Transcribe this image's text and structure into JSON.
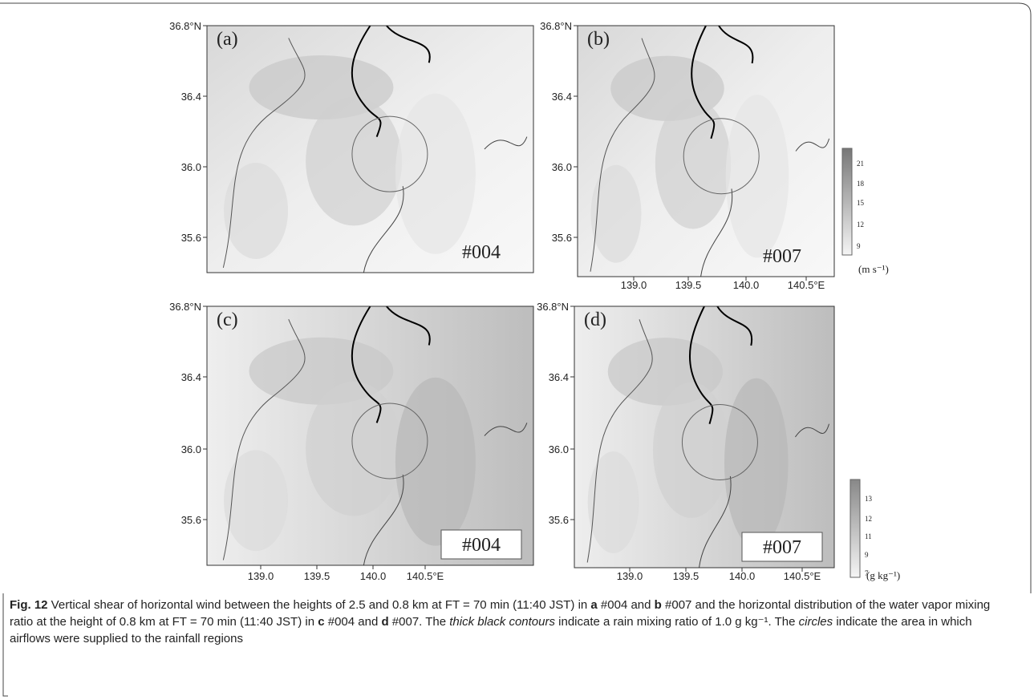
{
  "panels": [
    {
      "label": "(a)",
      "run": "#004",
      "lat_ticks": [
        "36.8°N",
        "36.4",
        "36.0",
        "35.6"
      ]
    },
    {
      "label": "(b)",
      "run": "#007",
      "lat_ticks": [
        "36.8°N",
        "36.4",
        "36.0",
        "35.6"
      ],
      "lon_ticks": [
        "139.0",
        "139.5",
        "140.0",
        "140.5°E"
      ]
    },
    {
      "label": "(c)",
      "run": "#004",
      "lat_ticks": [
        "36.8°N",
        "36.4",
        "36.0",
        "35.6"
      ],
      "lon_ticks": [
        "139.0",
        "139.5",
        "140.0",
        "140.5°E"
      ]
    },
    {
      "label": "(d)",
      "run": "#007",
      "lat_ticks": [
        "36.8°N",
        "36.4",
        "36.0",
        "35.6"
      ],
      "lon_ticks": [
        "139.0",
        "139.5",
        "140.0",
        "140.5°E"
      ]
    }
  ],
  "colorbars": [
    {
      "ticks": [
        "21",
        "18",
        "15",
        "12",
        "9"
      ],
      "unit": "(m s⁻¹)"
    },
    {
      "ticks": [
        "13",
        "12",
        "11",
        "9",
        "7"
      ],
      "unit": "(g kg⁻¹)"
    }
  ],
  "caption": [
    {
      "text": "Fig. 12",
      "style": "bold"
    },
    {
      "text": " Vertical shear of horizontal wind between the heights of 2.5 and 0.8 km at FT = 70 min (11:40 JST) in ",
      "style": "normal"
    },
    {
      "text": "a",
      "style": "bold"
    },
    {
      "text": " #004 and ",
      "style": "normal"
    },
    {
      "text": "b",
      "style": "bold"
    },
    {
      "text": " #007 and the horizontal distribution of the water vapor mixing ratio at the height of 0.8 km at FT = 70 min (11:40 JST) in ",
      "style": "normal"
    },
    {
      "text": "c",
      "style": "bold"
    },
    {
      "text": " #004 and ",
      "style": "normal"
    },
    {
      "text": "d",
      "style": "bold"
    },
    {
      "text": " #007. The ",
      "style": "normal"
    },
    {
      "text": "thick black contours",
      "style": "italic"
    },
    {
      "text": " indicate a rain mixing ratio of 1.0 g kg⁻¹. The ",
      "style": "normal"
    },
    {
      "text": "circles",
      "style": "italic"
    },
    {
      "text": " indicate the area in which airflows were supplied to the rainfall regions",
      "style": "normal"
    }
  ]
}
